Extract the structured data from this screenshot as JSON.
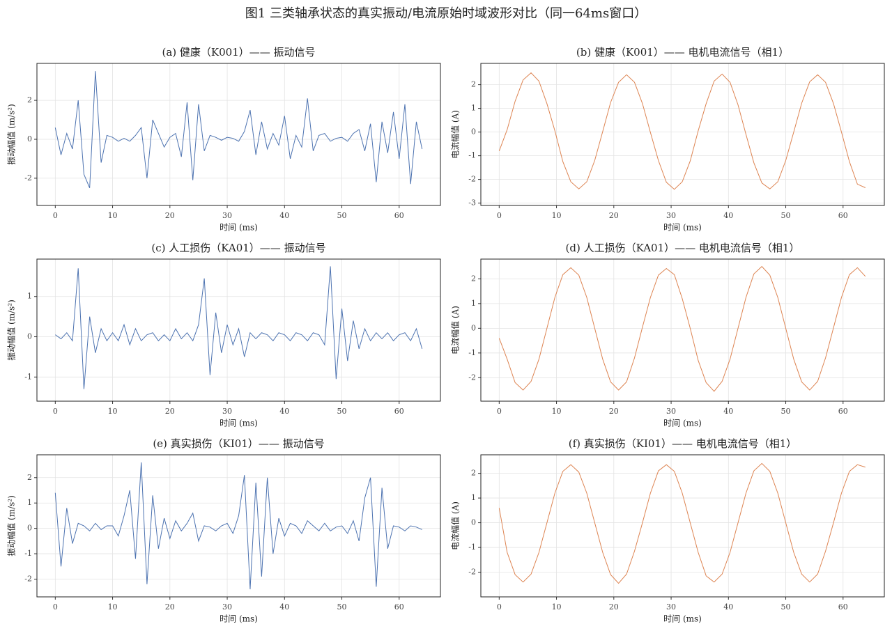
{
  "title": "图1 三类轴承状态的真实振动/电流原始时域波形对比（同一64ms窗口）",
  "chart_data": [
    {
      "type": "line",
      "title": "(a) 健康（K001）—— 振动信号",
      "xlabel": "时间 (ms)",
      "ylabel": "振动幅值 (m/s²)",
      "x": [
        0,
        1,
        2,
        3,
        4,
        5,
        6,
        7,
        8,
        9,
        10,
        11,
        12,
        13,
        14,
        15,
        16,
        17,
        18,
        19,
        20,
        21,
        22,
        23,
        24,
        25,
        26,
        27,
        28,
        29,
        30,
        31,
        32,
        33,
        34,
        35,
        36,
        37,
        38,
        39,
        40,
        41,
        42,
        43,
        44,
        45,
        46,
        47,
        48,
        49,
        50,
        51,
        52,
        53,
        54,
        55,
        56,
        57,
        58,
        59,
        60,
        61,
        62,
        63,
        64
      ],
      "series": [
        {
          "color": "#4c72b0",
          "values": [
            0.6,
            -0.8,
            0.3,
            -0.5,
            2.0,
            -1.8,
            -2.5,
            3.5,
            -1.2,
            0.2,
            0.1,
            -0.1,
            0.05,
            -0.1,
            0.2,
            0.6,
            -2.0,
            1.0,
            0.3,
            -0.4,
            0.1,
            0.3,
            -0.9,
            1.9,
            -2.1,
            1.8,
            -0.6,
            0.2,
            0.1,
            -0.05,
            0.1,
            0.05,
            -0.1,
            0.4,
            1.5,
            -0.8,
            0.9,
            -0.5,
            0.3,
            -0.3,
            1.2,
            -1.0,
            0.2,
            -0.4,
            2.1,
            -0.6,
            0.2,
            0.3,
            -0.1,
            0.05,
            0.1,
            -0.1,
            0.3,
            0.5,
            -0.6,
            0.8,
            -2.2,
            0.9,
            -0.7,
            1.4,
            -1.0,
            1.8,
            -2.3,
            0.9,
            -0.5
          ]
        }
      ],
      "xlim": [
        -3.2,
        67.2
      ],
      "ylim": [
        -3.4,
        3.9
      ],
      "xticks": [
        0,
        10,
        20,
        30,
        40,
        50,
        60
      ],
      "yticks": [
        -2,
        0,
        2
      ],
      "grid": true
    },
    {
      "type": "line",
      "title": "(b) 健康（K001）—— 电机电流信号（相1）",
      "xlabel": "时间 (ms)",
      "ylabel": "电流幅值 (A)",
      "x": [
        0,
        1.39,
        2.78,
        4.17,
        5.56,
        6.94,
        8.33,
        9.72,
        11.11,
        12.5,
        13.89,
        15.28,
        16.67,
        18.06,
        19.44,
        20.83,
        22.22,
        23.61,
        25,
        26.39,
        27.78,
        29.17,
        30.56,
        31.94,
        33.33,
        34.72,
        36.11,
        37.5,
        38.89,
        40.28,
        41.67,
        43.06,
        44.44,
        45.83,
        47.22,
        48.61,
        50,
        51.39,
        52.78,
        54.17,
        55.56,
        56.94,
        58.33,
        59.72,
        61.11,
        62.5,
        63.89
      ],
      "series": [
        {
          "color": "#dd8452",
          "values": [
            -0.8,
            0.1,
            1.3,
            2.2,
            2.5,
            2.15,
            1.2,
            0.05,
            -1.25,
            -2.1,
            -2.4,
            -2.1,
            -1.2,
            0.02,
            1.25,
            2.1,
            2.42,
            2.1,
            1.2,
            -0.02,
            -1.2,
            -2.12,
            -2.42,
            -2.1,
            -1.22,
            0.05,
            1.2,
            2.15,
            2.45,
            2.1,
            1.15,
            -0.1,
            -1.3,
            -2.15,
            -2.4,
            -2.1,
            -1.2,
            0,
            1.22,
            2.12,
            2.42,
            2.1,
            1.2,
            0,
            -1.25,
            -2.2,
            -2.35
          ]
        }
      ],
      "xlim": [
        -3.2,
        67.2
      ],
      "ylim": [
        -3.1,
        2.9
      ],
      "xticks": [
        0,
        10,
        20,
        30,
        40,
        50,
        60
      ],
      "yticks": [
        -3,
        -2,
        -1,
        0,
        1,
        2
      ],
      "grid": true
    },
    {
      "type": "line",
      "title": "(c) 人工损伤（KA01）—— 振动信号",
      "xlabel": "时间 (ms)",
      "ylabel": "振动幅值 (m/s²)",
      "x": [
        0,
        1,
        2,
        3,
        4,
        5,
        6,
        7,
        8,
        9,
        10,
        11,
        12,
        13,
        14,
        15,
        16,
        17,
        18,
        19,
        20,
        21,
        22,
        23,
        24,
        25,
        26,
        27,
        28,
        29,
        30,
        31,
        32,
        33,
        34,
        35,
        36,
        37,
        38,
        39,
        40,
        41,
        42,
        43,
        44,
        45,
        46,
        47,
        48,
        49,
        50,
        51,
        52,
        53,
        54,
        55,
        56,
        57,
        58,
        59,
        60,
        61,
        62,
        63,
        64
      ],
      "series": [
        {
          "color": "#4c72b0",
          "values": [
            0.05,
            -0.05,
            0.1,
            -0.1,
            1.7,
            -1.3,
            0.5,
            -0.4,
            0.2,
            -0.1,
            0.1,
            -0.1,
            0.3,
            -0.2,
            0.2,
            -0.1,
            0.05,
            0.1,
            -0.1,
            0.05,
            -0.1,
            0.2,
            -0.05,
            0.1,
            -0.1,
            0.3,
            1.45,
            -0.95,
            0.6,
            -0.4,
            0.3,
            -0.2,
            0.2,
            -0.5,
            0.1,
            -0.05,
            0.1,
            0.05,
            -0.1,
            0.1,
            0.05,
            -0.1,
            0.1,
            0.05,
            -0.1,
            0.1,
            0.05,
            -0.2,
            1.75,
            -1.05,
            0.7,
            -0.6,
            0.4,
            -0.3,
            0.2,
            -0.1,
            0.1,
            -0.05,
            0.1,
            -0.1,
            0.05,
            0.1,
            -0.1,
            0.2,
            -0.3
          ]
        }
      ],
      "xlim": [
        -3.2,
        67.2
      ],
      "ylim": [
        -1.6,
        1.93
      ],
      "xticks": [
        0,
        10,
        20,
        30,
        40,
        50,
        60
      ],
      "yticks": [
        -1,
        0,
        1
      ],
      "grid": true
    },
    {
      "type": "line",
      "title": "(d) 人工损伤（KA01）—— 电机电流信号（相1）",
      "xlabel": "时间 (ms)",
      "ylabel": "电流幅值 (A)",
      "x": [
        0,
        1.39,
        2.78,
        4.17,
        5.56,
        6.94,
        8.33,
        9.72,
        11.11,
        12.5,
        13.89,
        15.28,
        16.67,
        18.06,
        19.44,
        20.83,
        22.22,
        23.61,
        25,
        26.39,
        27.78,
        29.17,
        30.56,
        31.94,
        33.33,
        34.72,
        36.11,
        37.5,
        38.89,
        40.28,
        41.67,
        43.06,
        44.44,
        45.83,
        47.22,
        48.61,
        50,
        51.39,
        52.78,
        54.17,
        55.56,
        56.94,
        58.33,
        59.72,
        61.11,
        62.5,
        63.89
      ],
      "series": [
        {
          "color": "#dd8452",
          "values": [
            -0.4,
            -1.25,
            -2.2,
            -2.5,
            -2.15,
            -1.25,
            0,
            1.25,
            2.17,
            2.45,
            2.15,
            1.25,
            0,
            -1.25,
            -2.17,
            -2.5,
            -2.17,
            -1.2,
            0.05,
            1.25,
            2.15,
            2.42,
            2.17,
            1.2,
            0,
            -1.3,
            -2.2,
            -2.55,
            -2.15,
            -1.25,
            0,
            1.25,
            2.2,
            2.5,
            2.15,
            1.25,
            0,
            -1.25,
            -2.17,
            -2.5,
            -2.15,
            -1.2,
            0.02,
            1.25,
            2.17,
            2.45,
            2.1
          ]
        }
      ],
      "xlim": [
        -3.2,
        67.2
      ],
      "ylim": [
        -2.95,
        2.8
      ],
      "xticks": [
        0,
        10,
        20,
        30,
        40,
        50,
        60
      ],
      "yticks": [
        -2,
        -1,
        0,
        1,
        2
      ],
      "grid": true
    },
    {
      "type": "line",
      "title": "(e) 真实损伤（KI01）—— 振动信号",
      "xlabel": "时间 (ms)",
      "ylabel": "振动幅值 (m/s²)",
      "x": [
        0,
        1,
        2,
        3,
        4,
        5,
        6,
        7,
        8,
        9,
        10,
        11,
        12,
        13,
        14,
        15,
        16,
        17,
        18,
        19,
        20,
        21,
        22,
        23,
        24,
        25,
        26,
        27,
        28,
        29,
        30,
        31,
        32,
        33,
        34,
        35,
        36,
        37,
        38,
        39,
        40,
        41,
        42,
        43,
        44,
        45,
        46,
        47,
        48,
        49,
        50,
        51,
        52,
        53,
        54,
        55,
        56,
        57,
        58,
        59,
        60,
        61,
        62,
        63,
        64
      ],
      "series": [
        {
          "color": "#4c72b0",
          "values": [
            1.4,
            -1.5,
            0.8,
            -0.6,
            0.2,
            0.1,
            -0.1,
            0.2,
            -0.05,
            0.1,
            0.1,
            -0.3,
            0.5,
            1.5,
            -1.2,
            2.6,
            -2.2,
            1.3,
            -0.8,
            0.4,
            -0.4,
            0.3,
            -0.1,
            0.2,
            0.6,
            -0.5,
            0.1,
            0.05,
            -0.1,
            0.1,
            0.2,
            -0.2,
            0.5,
            2.1,
            -2.4,
            1.8,
            -1.9,
            2.0,
            -1.0,
            0.4,
            -0.3,
            0.2,
            0.1,
            -0.2,
            0.3,
            0.1,
            -0.1,
            0.2,
            -0.1,
            0.05,
            0.1,
            -0.2,
            0.3,
            -0.5,
            1.2,
            2.0,
            -2.3,
            1.6,
            -0.8,
            0.1,
            0.05,
            -0.1,
            0.1,
            0.05,
            -0.05
          ]
        }
      ],
      "xlim": [
        -3.2,
        67.2
      ],
      "ylim": [
        -2.7,
        2.9
      ],
      "xticks": [
        0,
        10,
        20,
        30,
        40,
        50,
        60
      ],
      "yticks": [
        -2,
        -1,
        0,
        1,
        2
      ],
      "grid": true
    },
    {
      "type": "line",
      "title": "(f) 真实损伤（KI01）—— 电机电流信号（相1）",
      "xlabel": "时间 (ms)",
      "ylabel": "电流幅值 (A)",
      "x": [
        0,
        1.39,
        2.78,
        4.17,
        5.56,
        6.94,
        8.33,
        9.72,
        11.11,
        12.5,
        13.89,
        15.28,
        16.67,
        18.06,
        19.44,
        20.83,
        22.22,
        23.61,
        25,
        26.39,
        27.78,
        29.17,
        30.56,
        31.94,
        33.33,
        34.72,
        36.11,
        37.5,
        38.89,
        40.28,
        41.67,
        43.06,
        44.44,
        45.83,
        47.22,
        48.61,
        50,
        51.39,
        52.78,
        54.17,
        55.56,
        56.94,
        58.33,
        59.72,
        61.11,
        62.5,
        63.89
      ],
      "series": [
        {
          "color": "#dd8452",
          "values": [
            0.6,
            -1.2,
            -2.1,
            -2.4,
            -2.08,
            -1.2,
            0,
            1.2,
            2.08,
            2.35,
            2.05,
            1.2,
            0,
            -1.2,
            -2.1,
            -2.45,
            -2.08,
            -1.15,
            0,
            1.2,
            2.1,
            2.35,
            2.08,
            1.2,
            0,
            -1.2,
            -2.15,
            -2.4,
            -2.08,
            -1.2,
            0,
            1.2,
            2.1,
            2.4,
            2.08,
            1.2,
            0,
            -1.2,
            -2.08,
            -2.4,
            -2.08,
            -1.15,
            0,
            1.2,
            2.08,
            2.35,
            2.25
          ]
        }
      ],
      "xlim": [
        -3.2,
        67.2
      ],
      "ylim": [
        -3.0,
        2.75
      ],
      "xticks": [
        0,
        10,
        20,
        30,
        40,
        50,
        60
      ],
      "yticks": [
        -2,
        -1,
        0,
        1,
        2
      ],
      "grid": true
    }
  ]
}
